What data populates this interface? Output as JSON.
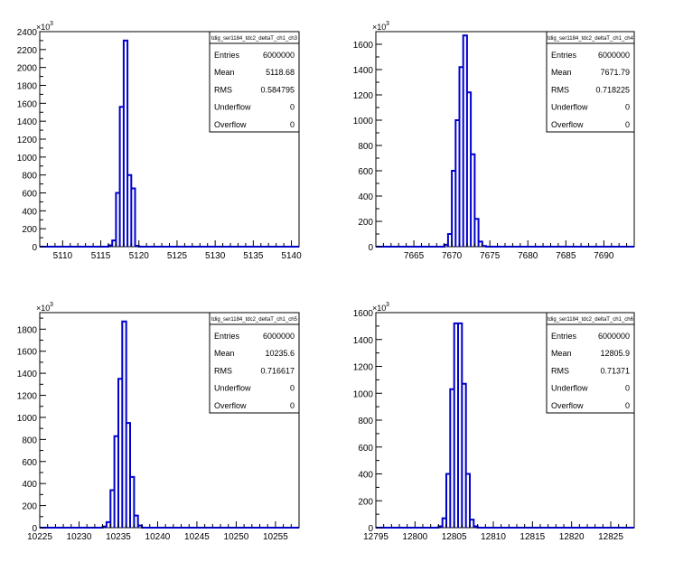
{
  "chart_data": [
    {
      "type": "histogram",
      "stats_box": {
        "title": "tdig_ser1184_tdc2_deltaT_ch1_ch3",
        "rows": [
          {
            "label": "Entries",
            "value": "6000000"
          },
          {
            "label": "Mean",
            "value": "5118.68"
          },
          {
            "label": "RMS",
            "value": "0.584795"
          },
          {
            "label": "Underflow",
            "value": "0"
          },
          {
            "label": "Overflow",
            "value": "0"
          }
        ]
      },
      "y_multiplier": "×10",
      "y_multiplier_exp": "3",
      "xlim": [
        5107,
        5141
      ],
      "ylim": [
        0,
        2400
      ],
      "x_ticks": [
        5110,
        5115,
        5120,
        5125,
        5130,
        5135,
        5140
      ],
      "y_ticks": [
        0,
        200,
        400,
        600,
        800,
        1000,
        1200,
        1400,
        1600,
        1800,
        2000,
        2200,
        2400
      ],
      "bins": [
        [
          5116,
          15
        ],
        [
          5116.5,
          70
        ],
        [
          5117,
          600
        ],
        [
          5117.5,
          1560
        ],
        [
          5118,
          2300
        ],
        [
          5118.5,
          800
        ],
        [
          5119,
          650
        ],
        [
          5119.5,
          10
        ]
      ],
      "bin_width": 0.5
    },
    {
      "type": "histogram",
      "stats_box": {
        "title": "tdig_ser1184_tdc2_deltaT_ch1_ch4",
        "rows": [
          {
            "label": "Entries",
            "value": "6000000"
          },
          {
            "label": "Mean",
            "value": "7671.79"
          },
          {
            "label": "RMS",
            "value": "0.718225"
          },
          {
            "label": "Underflow",
            "value": "0"
          },
          {
            "label": "Overflow",
            "value": "0"
          }
        ]
      },
      "y_multiplier": "×10",
      "y_multiplier_exp": "3",
      "xlim": [
        7660,
        7694
      ],
      "ylim": [
        0,
        1700
      ],
      "x_ticks": [
        7665,
        7670,
        7675,
        7680,
        7685,
        7690
      ],
      "y_ticks": [
        0,
        200,
        400,
        600,
        800,
        1000,
        1200,
        1400,
        1600
      ],
      "bins": [
        [
          7669,
          15
        ],
        [
          7669.5,
          100
        ],
        [
          7670,
          600
        ],
        [
          7670.5,
          1000
        ],
        [
          7671,
          1420
        ],
        [
          7671.5,
          1670
        ],
        [
          7672,
          1220
        ],
        [
          7672.5,
          730
        ],
        [
          7673,
          220
        ],
        [
          7673.5,
          40
        ],
        [
          7674,
          5
        ]
      ],
      "bin_width": 0.5
    },
    {
      "type": "histogram",
      "stats_box": {
        "title": "tdig_ser1184_tdc2_deltaT_ch1_ch5",
        "rows": [
          {
            "label": "Entries",
            "value": "6000000"
          },
          {
            "label": "Mean",
            "value": "10235.6"
          },
          {
            "label": "RMS",
            "value": "0.716617"
          },
          {
            "label": "Underflow",
            "value": "0"
          },
          {
            "label": "Overflow",
            "value": "0"
          }
        ]
      },
      "y_multiplier": "×10",
      "y_multiplier_exp": "3",
      "xlim": [
        10225,
        10258
      ],
      "ylim": [
        0,
        1950
      ],
      "x_ticks": [
        10225,
        10230,
        10235,
        10240,
        10245,
        10250,
        10255
      ],
      "y_ticks": [
        0,
        200,
        400,
        600,
        800,
        1000,
        1200,
        1400,
        1600,
        1800
      ],
      "bins": [
        [
          10233,
          10
        ],
        [
          10233.5,
          50
        ],
        [
          10234,
          340
        ],
        [
          10234.5,
          830
        ],
        [
          10235,
          1350
        ],
        [
          10235.5,
          1870
        ],
        [
          10236,
          950
        ],
        [
          10236.5,
          460
        ],
        [
          10237,
          110
        ],
        [
          10237.5,
          20
        ]
      ],
      "bin_width": 0.5
    },
    {
      "type": "histogram",
      "stats_box": {
        "title": "tdig_ser1184_tdc2_deltaT_ch1_ch6",
        "rows": [
          {
            "label": "Entries",
            "value": "6000000"
          },
          {
            "label": "Mean",
            "value": "12805.9"
          },
          {
            "label": "RMS",
            "value": "0.71371"
          },
          {
            "label": "Underflow",
            "value": "0"
          },
          {
            "label": "Overflow",
            "value": "0"
          }
        ]
      },
      "y_multiplier": "×10",
      "y_multiplier_exp": "3",
      "xlim": [
        12795,
        12828
      ],
      "ylim": [
        0,
        1600
      ],
      "x_ticks": [
        12795,
        12800,
        12805,
        12810,
        12815,
        12820,
        12825
      ],
      "y_ticks": [
        0,
        200,
        400,
        600,
        800,
        1000,
        1200,
        1400,
        1600
      ],
      "bins": [
        [
          12803,
          10
        ],
        [
          12803.5,
          70
        ],
        [
          12804,
          400
        ],
        [
          12804.5,
          1030
        ],
        [
          12805,
          1520
        ],
        [
          12805.5,
          1520
        ],
        [
          12806,
          1070
        ],
        [
          12806.5,
          400
        ],
        [
          12807,
          60
        ],
        [
          12807.5,
          10
        ]
      ],
      "bin_width": 0.5
    }
  ],
  "colors": {
    "histogram_line": "#0000cc",
    "axis": "#000000",
    "background": "#ffffff"
  }
}
